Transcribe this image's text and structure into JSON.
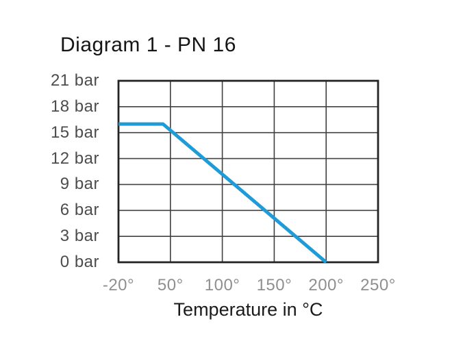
{
  "title": "Diagram 1 - PN 16",
  "chart_data": {
    "type": "line",
    "title": "Diagram 1 - PN 16",
    "xlabel": "Temperature in °C",
    "ylabel": "",
    "x_ticks": [
      -20,
      50,
      100,
      150,
      200,
      250
    ],
    "x_tick_labels": [
      "-20°",
      "50°",
      "100°",
      "150°",
      "200°",
      "250°"
    ],
    "y_ticks": [
      0,
      3,
      6,
      9,
      12,
      15,
      18,
      21
    ],
    "y_tick_labels": [
      "0 bar",
      "3 bar",
      "6 bar",
      "9 bar",
      "12 bar",
      "15 bar",
      "18 bar",
      "21 bar"
    ],
    "ylim": [
      0,
      21
    ],
    "grid": true,
    "legend": false,
    "layout": "x ticks evenly spaced",
    "series": [
      {
        "name": "PN 16",
        "points": [
          {
            "x": -20,
            "y": 16
          },
          {
            "x": 40,
            "y": 16
          },
          {
            "x": 200,
            "y": 0
          }
        ]
      }
    ]
  },
  "colors": {
    "line": "#1f9cd8",
    "grid": "#404040",
    "border": "#232323",
    "title_text": "#151515",
    "axis_title_text": "#1a1a1a",
    "y_tick_text": "#4c4c4c",
    "x_tick_text": "#8f8f8f",
    "background": "#ffffff"
  }
}
